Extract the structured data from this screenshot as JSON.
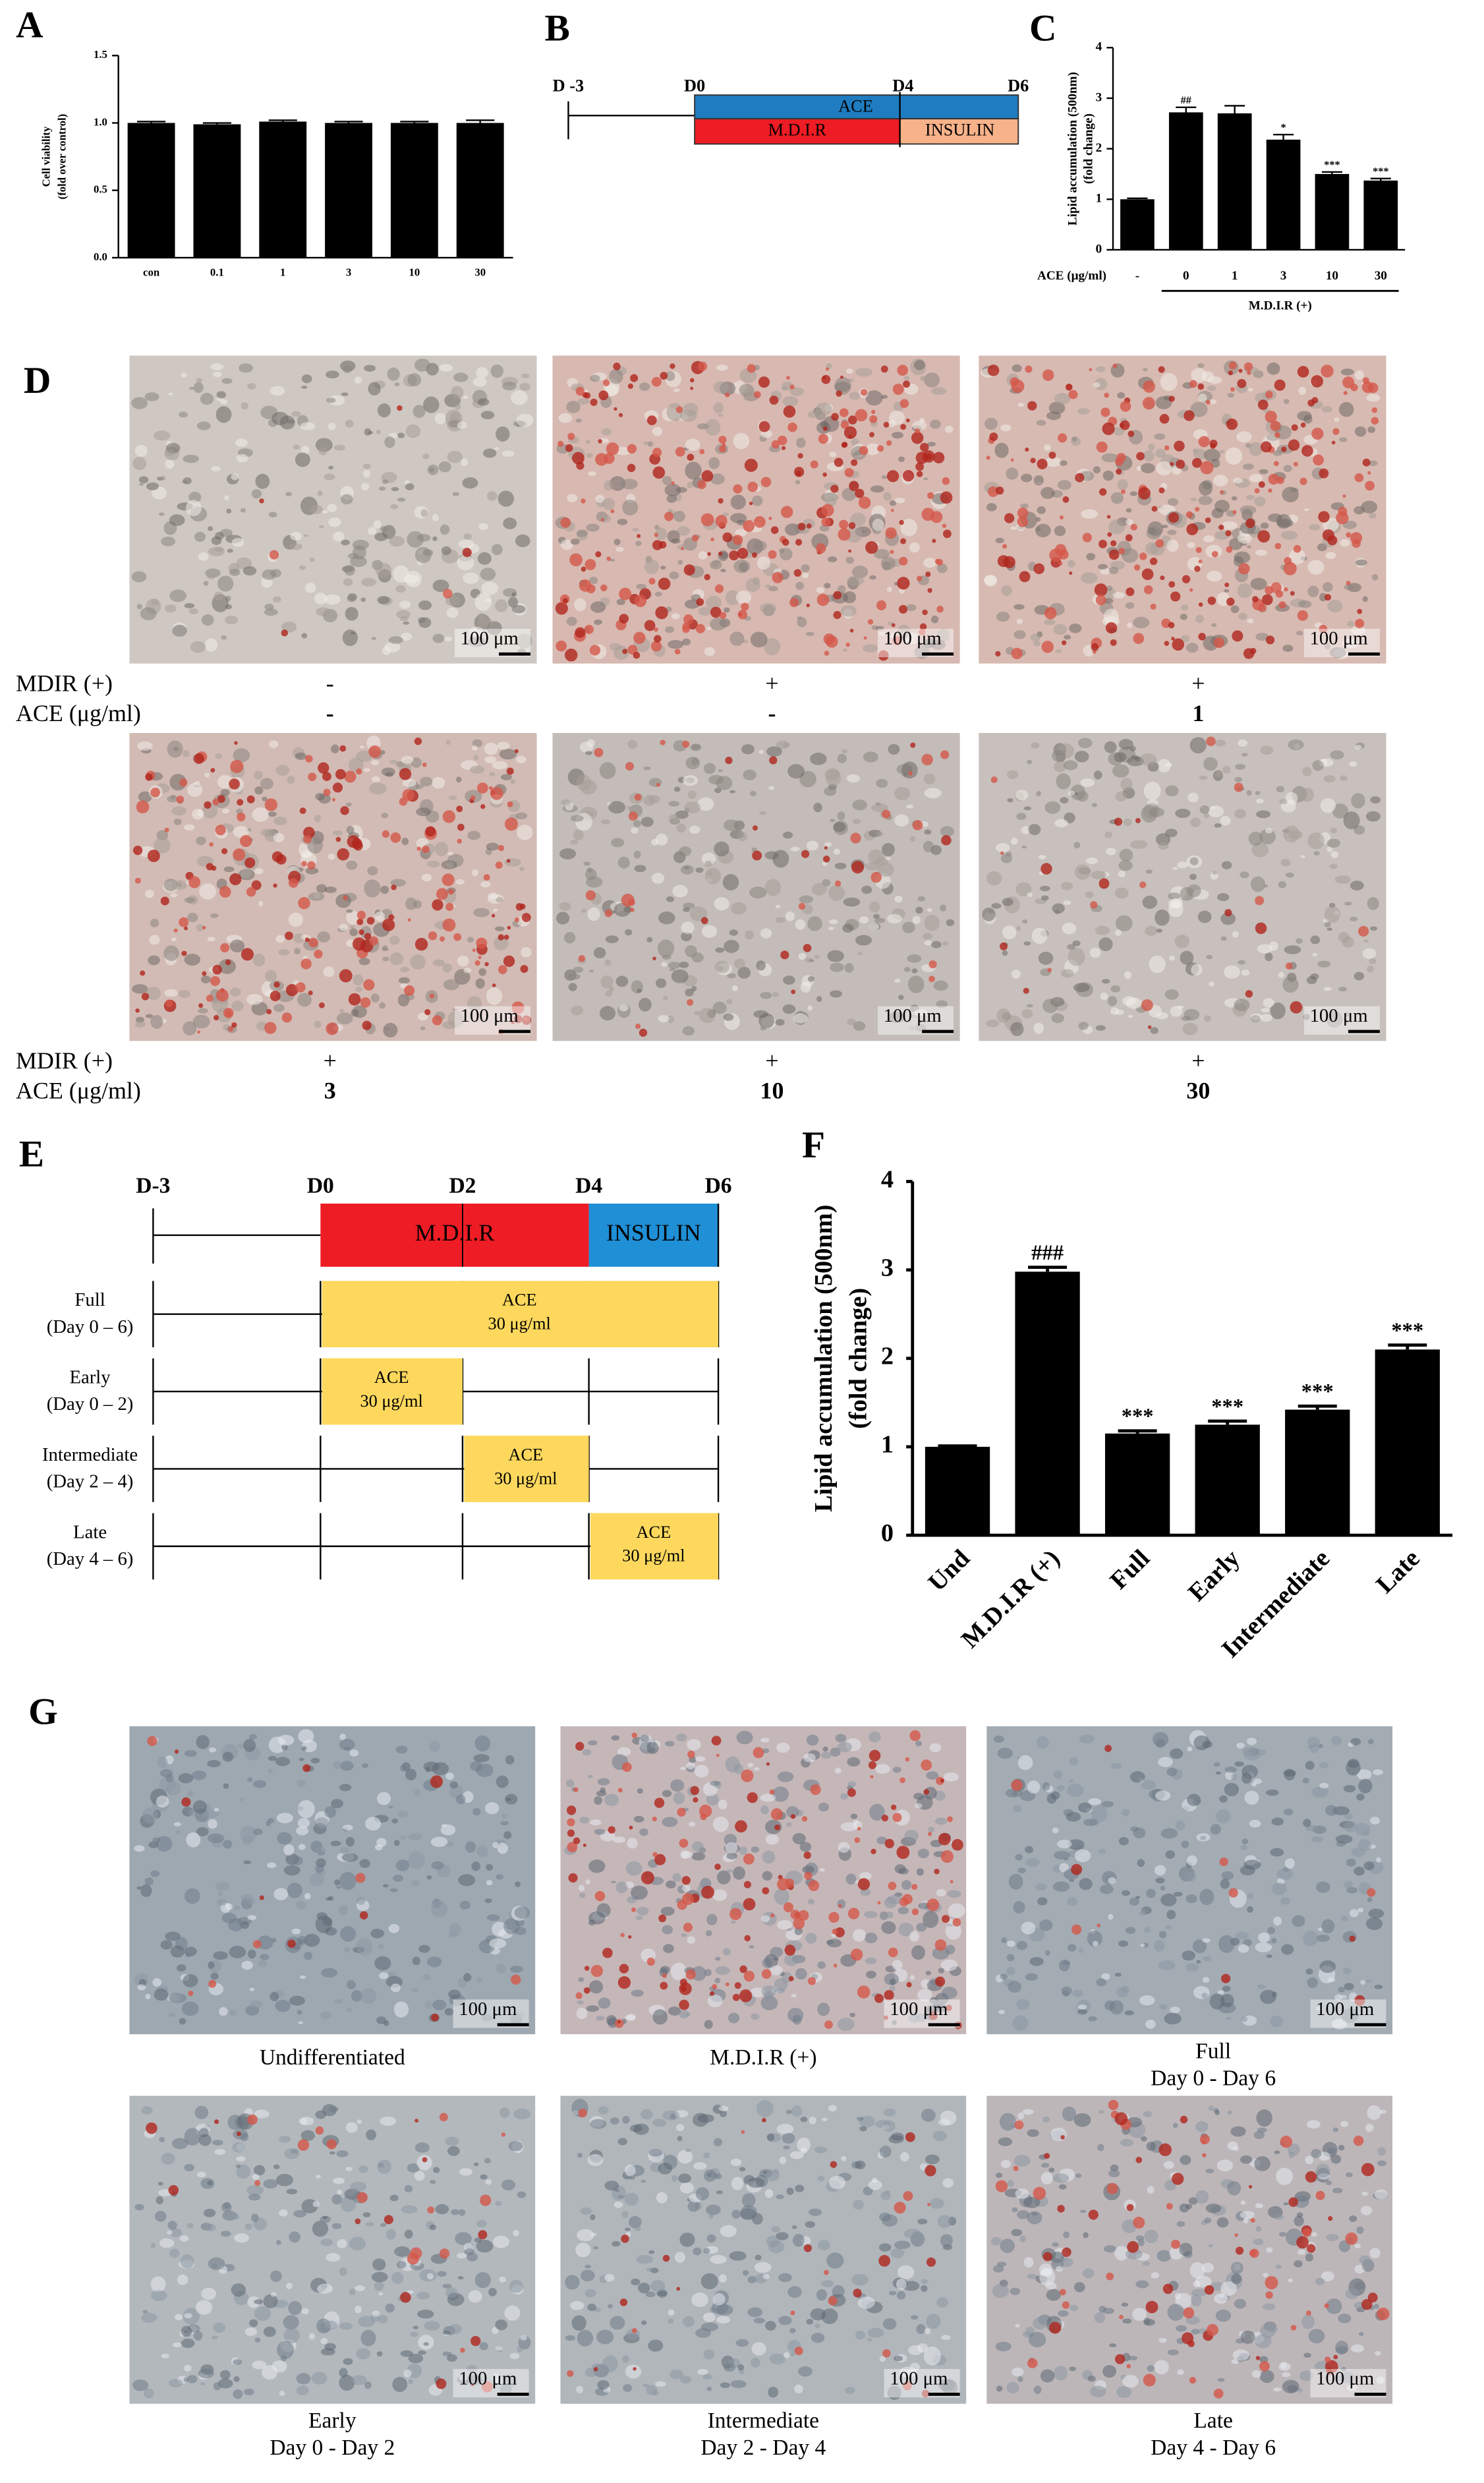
{
  "chart_data": [
    {
      "type": "bar",
      "panel": "A",
      "y_label": [
        "Cell viability",
        "(fold over control)"
      ],
      "categories": [
        "con",
        "0.1",
        "1",
        "3",
        "10",
        "30"
      ],
      "values": [
        1.0,
        0.99,
        1.01,
        1.0,
        1.0,
        1.0
      ],
      "errors": [
        0.01,
        0.01,
        0.01,
        0.01,
        0.01,
        0.02
      ],
      "annotations": [
        null,
        null,
        null,
        null,
        null,
        null
      ],
      "color": "#000000",
      "ylim": [
        0,
        1.5
      ],
      "yticks": [
        {
          "value": 0,
          "label": "0.0"
        },
        {
          "value": 0.5,
          "label": "0.5"
        },
        {
          "value": 1,
          "label": "1.0"
        },
        {
          "value": 1.5,
          "label": "1.5"
        }
      ]
    },
    {
      "type": "bar",
      "panel": "C",
      "y_label": [
        "Lipid accumulation (500nm)",
        "(fold change)"
      ],
      "x_label": "ACE (μg/ml)",
      "group_label": "M.D.I.R (+)",
      "categories": [
        "-",
        "0",
        "1",
        "3",
        "10",
        "30"
      ],
      "values": [
        1.0,
        2.72,
        2.7,
        2.18,
        1.5,
        1.37
      ],
      "errors": [
        0.02,
        0.1,
        0.15,
        0.1,
        0.04,
        0.04
      ],
      "annotations": [
        null,
        "##",
        null,
        "*",
        "***",
        "***"
      ],
      "color": "#000000",
      "ylim": [
        0,
        4
      ],
      "yticks": [
        0,
        1,
        2,
        3,
        4
      ]
    },
    {
      "type": "bar",
      "panel": "F",
      "y_label": [
        "Lipid accumulation (500nm)",
        "(fold change)"
      ],
      "categories": [
        "Und",
        "M.D.I.R (+)",
        "Full",
        "Early",
        "Intermediate",
        "Late"
      ],
      "values": [
        1.0,
        2.98,
        1.15,
        1.25,
        1.42,
        2.1
      ],
      "errors": [
        0.01,
        0.05,
        0.03,
        0.04,
        0.04,
        0.05
      ],
      "annotations": [
        null,
        "###",
        "***",
        "***",
        "***",
        "***"
      ],
      "color": "#000000",
      "ylim": [
        0,
        4
      ],
      "yticks": [
        0,
        1,
        2,
        3,
        4
      ]
    }
  ],
  "panel_b": {
    "label": "B",
    "days": [
      "D -3",
      "D0",
      "D4",
      "D6"
    ],
    "top_bar": "ACE",
    "bottom_bars": [
      "M.D.I.R",
      "INSULIN"
    ]
  },
  "panel_d": {
    "label": "D",
    "row_labels": [
      "MDIR (+)",
      "ACE (μg/ml)"
    ],
    "scale_bar": "100 μm",
    "images": [
      {
        "mdir": "-",
        "ace": "-"
      },
      {
        "mdir": "+",
        "ace": "-"
      },
      {
        "mdir": "+",
        "ace": "1"
      },
      {
        "mdir": "+",
        "ace": "3"
      },
      {
        "mdir": "+",
        "ace": "10"
      },
      {
        "mdir": "+",
        "ace": "30"
      }
    ]
  },
  "panel_e": {
    "label": "E",
    "days": [
      "D-3",
      "D0",
      "D2",
      "D4",
      "D6"
    ],
    "phases": [
      "M.D.I.R",
      "INSULIN"
    ],
    "rows": [
      {
        "name": "Full",
        "span": "(Day 0 – 6)",
        "treatment": [
          "ACE",
          "30 μg/ml"
        ]
      },
      {
        "name": "Early",
        "span": "(Day 0 – 2)",
        "treatment": [
          "ACE",
          "30 μg/ml"
        ]
      },
      {
        "name": "Intermediate",
        "span": "(Day 2 – 4)",
        "treatment": [
          "ACE",
          "30 μg/ml"
        ]
      },
      {
        "name": "Late",
        "span": "(Day 4 – 6)",
        "treatment": [
          "ACE",
          "30 μg/ml"
        ]
      }
    ]
  },
  "panel_g": {
    "label": "G",
    "scale_bar": "100 μm",
    "captions": [
      [
        "Undifferentiated"
      ],
      [
        "M.D.I.R (+)"
      ],
      [
        "Full",
        "Day 0 - Day 6"
      ],
      [
        "Early",
        "Day 0 - Day 2"
      ],
      [
        "Intermediate",
        "Day 2 - Day 4"
      ],
      [
        "Late",
        "Day 4 - Day 6"
      ]
    ]
  }
}
